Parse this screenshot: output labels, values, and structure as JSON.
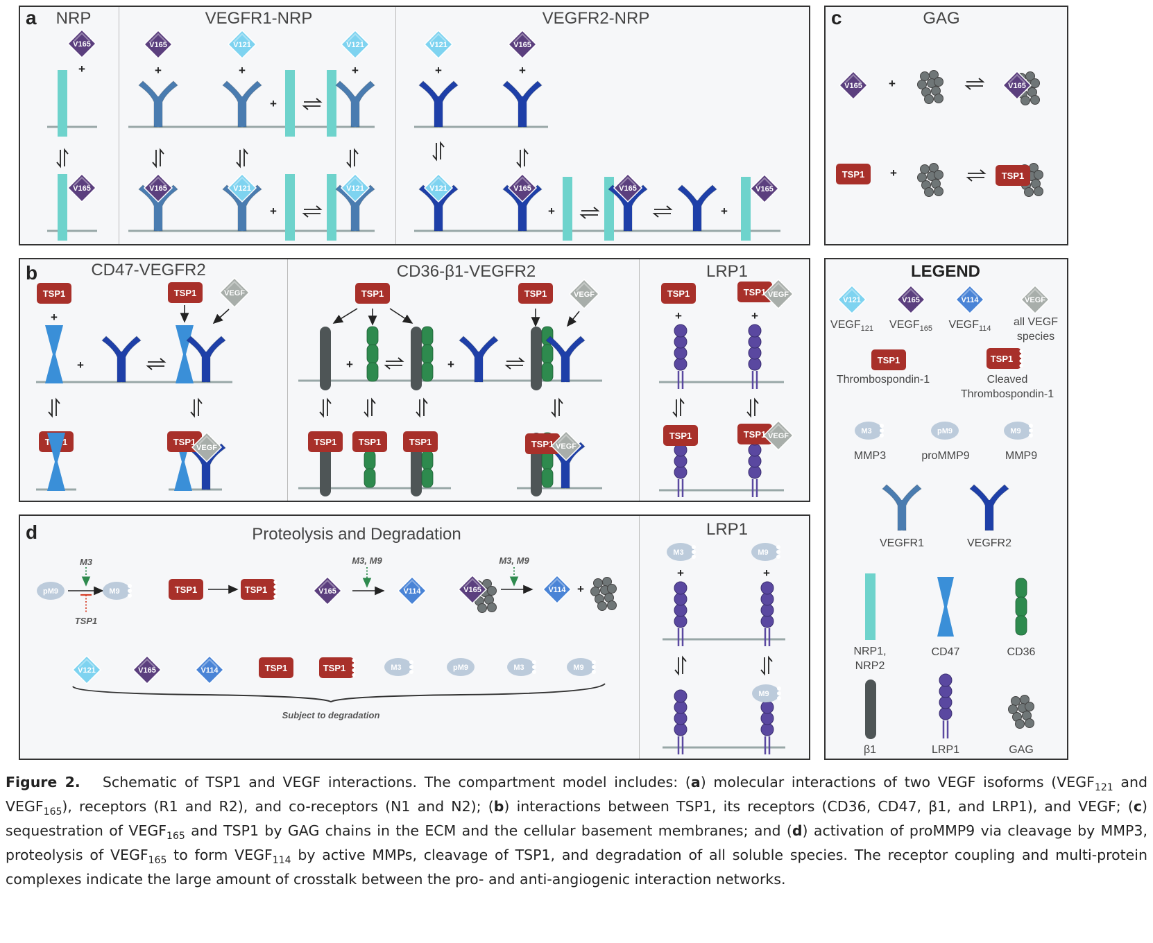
{
  "panels": {
    "a": {
      "letter": "a",
      "titles": [
        "NRP",
        "VEGFR1-NRP",
        "VEGFR2-NRP"
      ]
    },
    "b": {
      "letter": "b",
      "titles": [
        "CD47-VEGFR2",
        "CD36-β1-VEGFR2",
        "LRP1"
      ]
    },
    "c": {
      "letter": "c",
      "title": "GAG"
    },
    "d": {
      "letter": "d",
      "title": "Proteolysis and Degradation",
      "lrp1_title": "LRP1",
      "labels": {
        "m3": "M3",
        "tsp1_inhib": "TSP1",
        "m3m9_a": "M3, M9",
        "m3m9_b": "M3, M9",
        "subject": "Subject to degradation"
      }
    }
  },
  "glyph_labels": {
    "v165": "V165",
    "v121": "V121",
    "v114": "V114",
    "tsp1": "TSP1",
    "vegf": "VEGF",
    "m3": "M3",
    "m9": "M9",
    "pm9": "pM9",
    "plus": "+"
  },
  "legend": {
    "title": "LEGEND",
    "vegf121": "VEGF",
    "vegf121_sub": "121",
    "vegf165": "VEGF",
    "vegf165_sub": "165",
    "vegf114": "VEGF",
    "vegf114_sub": "114",
    "allvegf_1": "all VEGF",
    "allvegf_2": "species",
    "tsp1": "Thrombospondin-1",
    "cleaved_1": "Cleaved",
    "cleaved_2": "Thrombospondin-1",
    "mmp3": "MMP3",
    "prommp9": "proMMP9",
    "mmp9": "MMP9",
    "vegfr1": "VEGFR1",
    "vegfr2": "VEGFR2",
    "nrp_1": "NRP1,",
    "nrp_2": "NRP2",
    "cd47": "CD47",
    "cd36": "CD36",
    "b1": "β1",
    "lrp1": "LRP1",
    "gag": "GAG"
  },
  "caption": {
    "figure": "Figure 2.",
    "p1": "Schematic of TSP1 and VEGF interactions. The compartment model includes: (",
    "a": "a",
    "p2": ") molecular interactions of two VEGF isoforms (VEGF",
    "s121": "121",
    "p3": " and VEGF",
    "s165": "165",
    "p4": "), receptors (R1 and R2), and co-receptors (N1 and N2); (",
    "b": "b",
    "p5": ") interactions between TSP1, its receptors (CD36, CD47, β1, and LRP1), and VEGF; (",
    "c": "c",
    "p6": ") sequestration of VEGF",
    "s165b": "165",
    "p7": " and TSP1 by GAG chains in the ECM and the cellular basement membranes; and (",
    "d": "d",
    "p8": ") activation of proMMP9 via cleavage by MMP3, proteolysis of VEGF",
    "s165c": "165",
    "p9": " to form VEGF",
    "s114": "114",
    "p10": " by active MMPs, cleavage of TSP1, and degradation of all soluble species. The receptor coupling and multi-protein complexes indicate the large amount of crosstalk between the pro- and anti-angiogenic interaction networks."
  },
  "colors": {
    "v165": "#5b3f7e",
    "v121": "#7ed3f0",
    "v114": "#4a84d6",
    "vegf": "#a8aeaa",
    "tsp1": "#a8302a",
    "nrp": "#6ed3cc",
    "vegfr1": "#4a7cb0",
    "vegfr2": "#1e3fa8",
    "cd47": "#3a8fd8",
    "cd36": "#2e8a4e",
    "b1": "#4e5556",
    "lrp1": "#5a48a0",
    "mmp": "#bccbdb",
    "gag": "#6f7677",
    "membrane": "#98a7a7"
  }
}
